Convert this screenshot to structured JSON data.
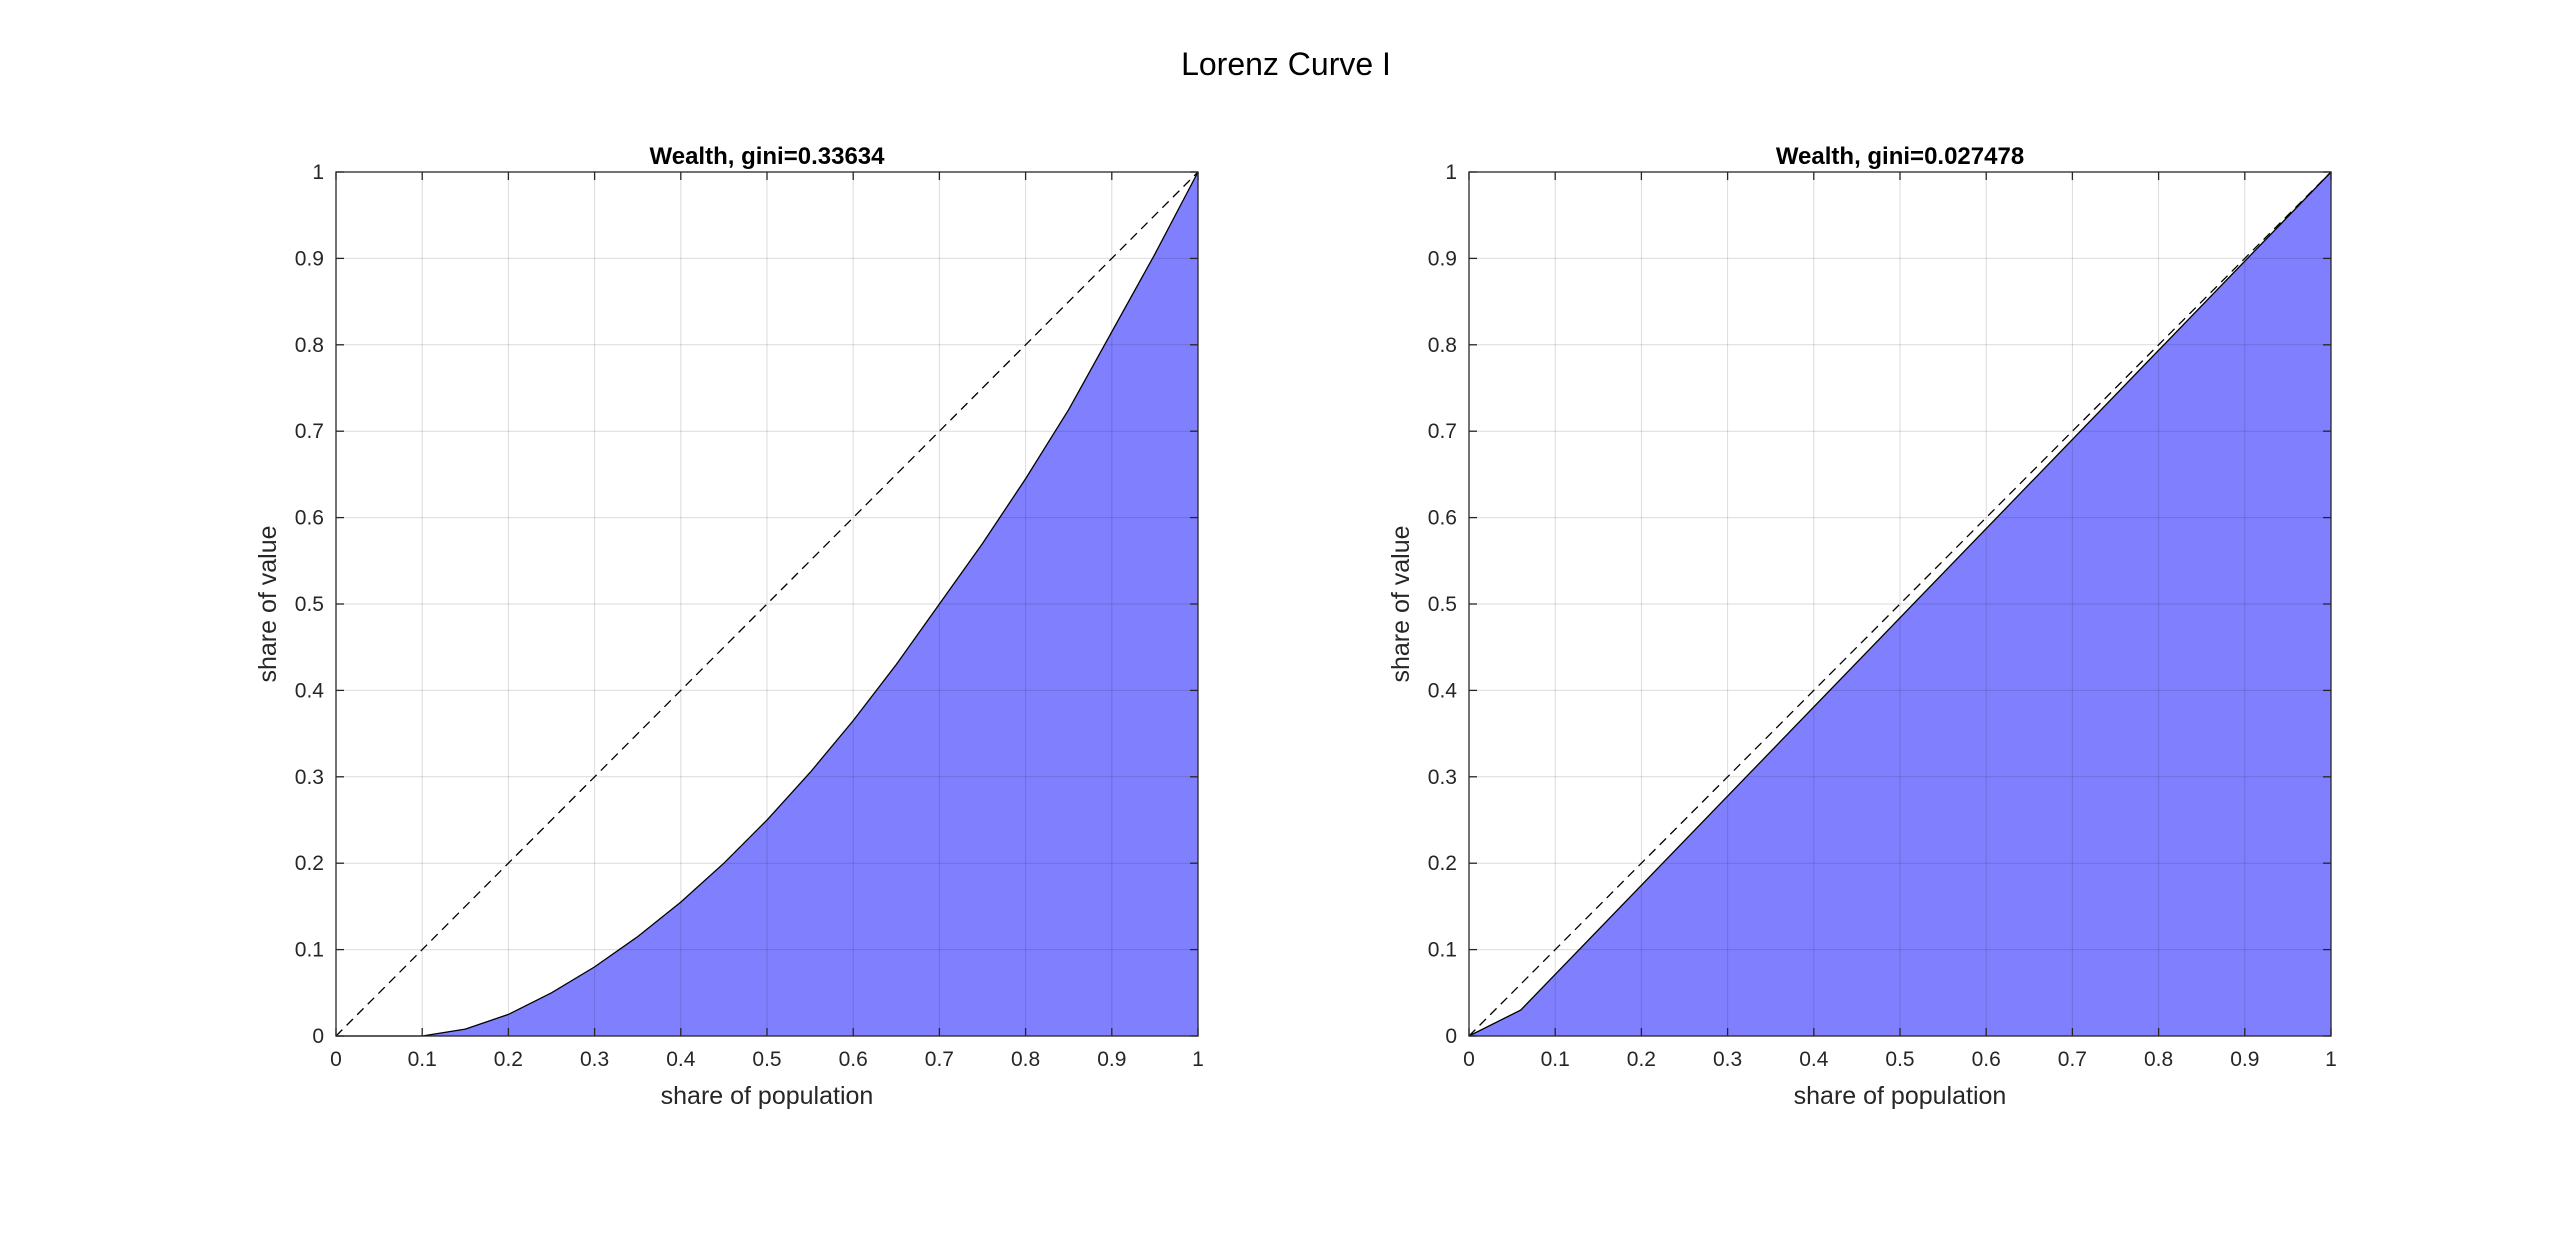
{
  "figure_title": "Lorenz Curve I",
  "colors": {
    "fill": "#8080ff",
    "curve": "#000000",
    "equality": "#000000",
    "grid": "#dcdcdc"
  },
  "chart_data": [
    {
      "type": "area",
      "title": "Wealth, gini=0.33634",
      "xlabel": "share of population",
      "ylabel": "share of value",
      "xlim": [
        0,
        1
      ],
      "ylim": [
        0,
        1
      ],
      "xticks": [
        "0",
        "0.1",
        "0.2",
        "0.3",
        "0.4",
        "0.5",
        "0.6",
        "0.7",
        "0.8",
        "0.9",
        "1"
      ],
      "yticks": [
        "0",
        "0.1",
        "0.2",
        "0.3",
        "0.4",
        "0.5",
        "0.6",
        "0.7",
        "0.8",
        "0.9",
        "1"
      ],
      "grid": true,
      "series": [
        {
          "x": [
            0,
            0.1,
            0.15,
            0.2,
            0.25,
            0.3,
            0.35,
            0.4,
            0.45,
            0.5,
            0.55,
            0.6,
            0.65,
            0.7,
            0.75,
            0.8,
            0.85,
            0.9,
            0.95,
            1
          ],
          "y": [
            0,
            0,
            0.008,
            0.025,
            0.05,
            0.08,
            0.115,
            0.155,
            0.2,
            0.25,
            0.305,
            0.365,
            0.43,
            0.5,
            0.57,
            0.645,
            0.725,
            0.815,
            0.905,
            1
          ]
        }
      ],
      "equality_line": {
        "x": [
          0,
          1
        ],
        "y": [
          0,
          1
        ],
        "style": "dashed"
      }
    },
    {
      "type": "area",
      "title": "Wealth, gini=0.027478",
      "xlabel": "share of population",
      "ylabel": "share of value",
      "xlim": [
        0,
        1
      ],
      "ylim": [
        0,
        1
      ],
      "xticks": [
        "0",
        "0.1",
        "0.2",
        "0.3",
        "0.4",
        "0.5",
        "0.6",
        "0.7",
        "0.8",
        "0.9",
        "1"
      ],
      "yticks": [
        "0",
        "0.1",
        "0.2",
        "0.3",
        "0.4",
        "0.5",
        "0.6",
        "0.7",
        "0.8",
        "0.9",
        "1"
      ],
      "grid": true,
      "series": [
        {
          "x": [
            0,
            0.06,
            1
          ],
          "y": [
            0,
            0.03,
            1
          ]
        }
      ],
      "equality_line": {
        "x": [
          0,
          1
        ],
        "y": [
          0,
          1
        ],
        "style": "dashed"
      }
    }
  ]
}
